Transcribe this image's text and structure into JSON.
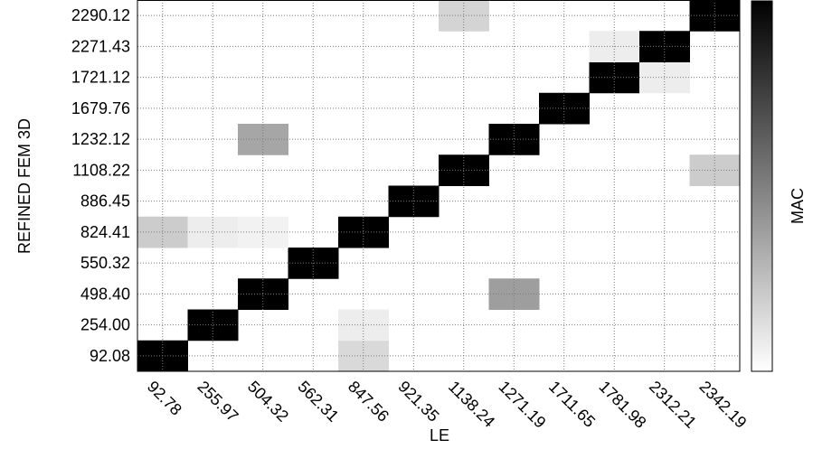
{
  "chart_data": {
    "type": "heatmap",
    "title": "",
    "xlabel": "LE",
    "ylabel": "REFINED FEM 3D",
    "colorbar_label": "MAC",
    "x_categories": [
      "92.78",
      "255.97",
      "504.32",
      "562.31",
      "847.56",
      "921.35",
      "1138.24",
      "1271.19",
      "1711.65",
      "1781.98",
      "2312.21",
      "2342.19"
    ],
    "y_categories": [
      "92.08",
      "254.00",
      "498.40",
      "550.32",
      "824.41",
      "886.45",
      "1108.22",
      "1232.12",
      "1679.76",
      "1721.12",
      "2271.43",
      "2290.12"
    ],
    "value_range": [
      0,
      1
    ],
    "colormap": [
      "#ffffff",
      "#000000"
    ],
    "grid": true,
    "cells": [
      {
        "x": 0,
        "y": 0,
        "v": 1.0
      },
      {
        "x": 4,
        "y": 0,
        "v": 0.15
      },
      {
        "x": 1,
        "y": 1,
        "v": 1.0
      },
      {
        "x": 4,
        "y": 1,
        "v": 0.07
      },
      {
        "x": 2,
        "y": 2,
        "v": 1.0
      },
      {
        "x": 7,
        "y": 2,
        "v": 0.38
      },
      {
        "x": 3,
        "y": 3,
        "v": 1.0
      },
      {
        "x": 0,
        "y": 4,
        "v": 0.2
      },
      {
        "x": 1,
        "y": 4,
        "v": 0.07
      },
      {
        "x": 2,
        "y": 4,
        "v": 0.05
      },
      {
        "x": 4,
        "y": 4,
        "v": 1.0
      },
      {
        "x": 5,
        "y": 5,
        "v": 1.0
      },
      {
        "x": 6,
        "y": 6,
        "v": 1.0
      },
      {
        "x": 11,
        "y": 6,
        "v": 0.2
      },
      {
        "x": 2,
        "y": 7,
        "v": 0.35
      },
      {
        "x": 7,
        "y": 7,
        "v": 1.0
      },
      {
        "x": 8,
        "y": 8,
        "v": 1.0
      },
      {
        "x": 9,
        "y": 9,
        "v": 1.0
      },
      {
        "x": 10,
        "y": 9,
        "v": 0.07
      },
      {
        "x": 9,
        "y": 10,
        "v": 0.07
      },
      {
        "x": 10,
        "y": 10,
        "v": 1.0
      },
      {
        "x": 6,
        "y": 11,
        "v": 0.17
      },
      {
        "x": 11,
        "y": 11,
        "v": 1.0
      }
    ]
  }
}
